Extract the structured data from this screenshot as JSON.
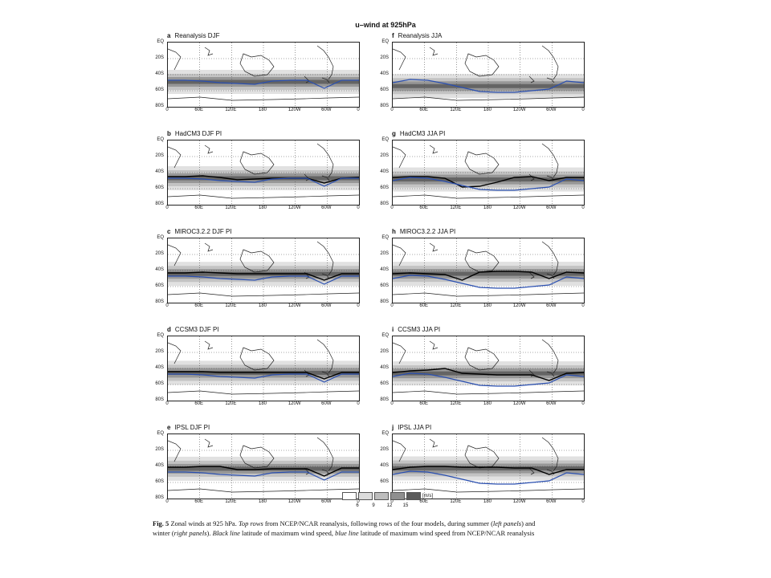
{
  "figure": {
    "title": "u–wind at  925hPa",
    "caption_prefix": "Fig. 5",
    "caption_text_1": " Zonal winds at 925 hPa. ",
    "caption_italic_1": "Top rows",
    "caption_text_2": " from NCEP/NCAR reanalysis, following rows of the four models, during summer (",
    "caption_italic_2": "left panels",
    "caption_text_3": ") and",
    "caption_line2_text_1": "winter (",
    "caption_italic_3": "right panels",
    "caption_text_4": "). ",
    "caption_italic_4": "Black line",
    "caption_text_5": " latitude of maximum wind speed, ",
    "caption_italic_5": "blue line",
    "caption_text_6": " latitude of maximum wind speed from NCEP/NCAR reanalysis"
  },
  "axes": {
    "y_ticks": [
      "EQ",
      "20S",
      "40S",
      "60S",
      "80S"
    ],
    "x_ticks": [
      "0",
      "60E",
      "120E",
      "180",
      "120W",
      "60W",
      "0"
    ]
  },
  "colorbar": {
    "ticks": [
      "6",
      "9",
      "12",
      "15"
    ],
    "unit": "[m/s]",
    "colors": [
      "#ffffff",
      "#dcdcdc",
      "#bdbdbd",
      "#8f8f8f",
      "#5a5a5a"
    ]
  },
  "panels": [
    {
      "letter": "a",
      "title": "Reanalysis DJF"
    },
    {
      "letter": "f",
      "title": "Reanalysis JJA"
    },
    {
      "letter": "b",
      "title": "HadCM3 DJF  PI"
    },
    {
      "letter": "g",
      "title": "HadCM3 JJA  PI"
    },
    {
      "letter": "c",
      "title": "MIROC3.2.2 DJF  PI"
    },
    {
      "letter": "h",
      "title": "MIROC3.2.2 JJA  PI"
    },
    {
      "letter": "d",
      "title": "CCSM3 DJF  PI"
    },
    {
      "letter": "i",
      "title": "CCSM3 JJA  PI"
    },
    {
      "letter": "e",
      "title": "IPSL DJF  PI"
    },
    {
      "letter": "j",
      "title": "IPSL JJA  PI"
    }
  ],
  "chart_data": {
    "type": "heatmap",
    "variable": "zonal wind speed at 925 hPa",
    "unit": "m/s",
    "x_axis": "longitude",
    "y_axis": "latitude",
    "longitude_ticks": [
      "0",
      "60E",
      "120E",
      "180",
      "120W",
      "60W",
      "0"
    ],
    "latitude_ticks": [
      "EQ",
      "20S",
      "40S",
      "60S",
      "80S"
    ],
    "ylim": [
      -80,
      0
    ],
    "contour_levels": [
      6,
      9,
      12,
      15
    ],
    "jet_latitude_series": [
      {
        "panel": "a",
        "reanalysis_lat": [
          -47,
          -47,
          -48,
          -50,
          -51,
          -52,
          -48,
          -47,
          -47,
          -57,
          -47,
          -47
        ]
      },
      {
        "panel": "f",
        "reanalysis_lat": [
          -50,
          -46,
          -47,
          -51,
          -56,
          -61,
          -62,
          -62,
          -60,
          -58,
          -48,
          -50
        ]
      },
      {
        "panel": "b",
        "model_lat": [
          -45,
          -45,
          -44,
          -46,
          -49,
          -48,
          -47,
          -47,
          -47,
          -53,
          -47,
          -46
        ],
        "reanalysis_lat": [
          -47,
          -47,
          -48,
          -50,
          -51,
          -52,
          -48,
          -47,
          -47,
          -57,
          -47,
          -47
        ]
      },
      {
        "panel": "g",
        "model_lat": [
          -46,
          -45,
          -45,
          -47,
          -58,
          -57,
          -52,
          -46,
          -45,
          -50,
          -46,
          -46
        ],
        "reanalysis_lat": [
          -50,
          -46,
          -47,
          -51,
          -56,
          -61,
          -62,
          -62,
          -60,
          -58,
          -48,
          -50
        ]
      },
      {
        "panel": "c",
        "model_lat": [
          -43,
          -43,
          -42,
          -43,
          -44,
          -44,
          -44,
          -44,
          -44,
          -52,
          -44,
          -44
        ],
        "reanalysis_lat": [
          -47,
          -47,
          -48,
          -50,
          -51,
          -52,
          -48,
          -47,
          -47,
          -57,
          -47,
          -47
        ]
      },
      {
        "panel": "h",
        "model_lat": [
          -44,
          -43,
          -44,
          -45,
          -52,
          -42,
          -41,
          -41,
          -42,
          -50,
          -42,
          -43
        ],
        "reanalysis_lat": [
          -50,
          -46,
          -47,
          -51,
          -56,
          -61,
          -62,
          -62,
          -60,
          -58,
          -48,
          -50
        ]
      },
      {
        "panel": "d",
        "model_lat": [
          -44,
          -44,
          -44,
          -45,
          -45,
          -45,
          -45,
          -45,
          -45,
          -53,
          -45,
          -45
        ],
        "reanalysis_lat": [
          -47,
          -47,
          -48,
          -50,
          -51,
          -52,
          -48,
          -47,
          -47,
          -57,
          -47,
          -47
        ]
      },
      {
        "panel": "i",
        "model_lat": [
          -45,
          -43,
          -42,
          -40,
          -46,
          -47,
          -48,
          -48,
          -48,
          -55,
          -46,
          -45
        ],
        "reanalysis_lat": [
          -50,
          -46,
          -47,
          -51,
          -56,
          -61,
          -62,
          -62,
          -60,
          -58,
          -48,
          -50
        ]
      },
      {
        "panel": "e",
        "model_lat": [
          -41,
          -41,
          -40,
          -40,
          -44,
          -44,
          -43,
          -43,
          -43,
          -52,
          -42,
          -42
        ],
        "reanalysis_lat": [
          -47,
          -47,
          -48,
          -50,
          -51,
          -52,
          -48,
          -47,
          -47,
          -57,
          -47,
          -47
        ]
      },
      {
        "panel": "j",
        "model_lat": [
          -44,
          -41,
          -40,
          -40,
          -41,
          -41,
          -41,
          -42,
          -42,
          -50,
          -44,
          -44
        ],
        "reanalysis_lat": [
          -50,
          -46,
          -47,
          -51,
          -56,
          -61,
          -62,
          -62,
          -60,
          -58,
          -48,
          -50
        ]
      }
    ],
    "series_colors": {
      "model": "#000000",
      "reanalysis": "#2a4fb0"
    }
  }
}
